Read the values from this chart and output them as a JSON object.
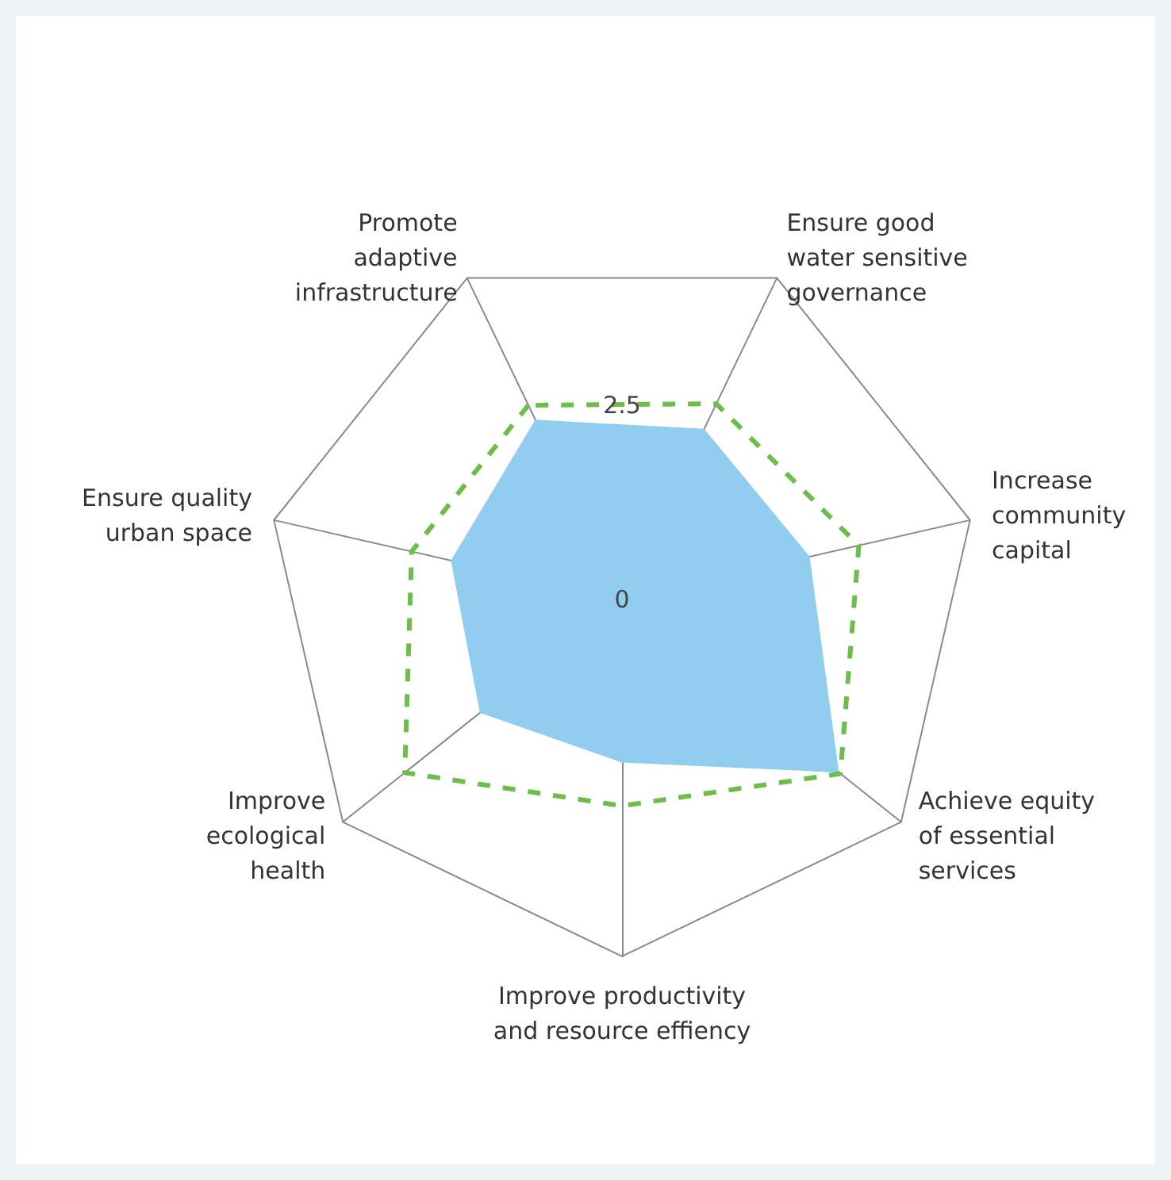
{
  "chart_data": {
    "type": "radar",
    "categories": [
      "Promote adaptive infrastructure",
      "Ensure good water sensitive governance",
      "Increase community capital",
      "Achieve equity of essential services",
      "Improve productivity and resource effiency",
      "Improve ecological health",
      "Ensure quality urban space"
    ],
    "ylim": [
      0,
      4.6
    ],
    "yticks": [
      0,
      2.5
    ],
    "grid": true,
    "marker": "none",
    "series": [
      {
        "color": "#90cdef",
        "values": [
          2.56,
          2.43,
          2.47,
          3.56,
          2.09,
          2.33,
          2.25
        ]
      },
      {
        "color": "#6dbd4a",
        "line_style": "dashed",
        "values": [
          2.78,
          2.8,
          3.13,
          3.6,
          2.66,
          3.58,
          2.78
        ]
      }
    ]
  }
}
